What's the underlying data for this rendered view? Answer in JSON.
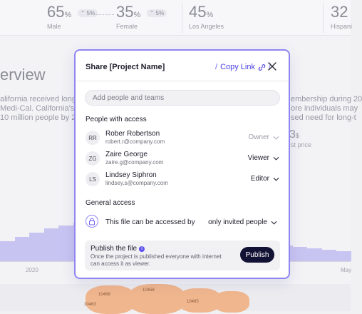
{
  "background": {
    "stats": [
      {
        "value": "65",
        "unit": "%",
        "chip": "5%",
        "label": "Male"
      },
      {
        "value": "35",
        "unit": "%",
        "chip": "5%",
        "label": "Female"
      },
      {
        "value": "45",
        "unit": "%",
        "label": "Los Angeles"
      },
      {
        "value": "32",
        "label": "Hispani"
      }
    ],
    "heading": "erview",
    "paragraph_left": [
      "alifornia received long",
      "Medi-Cal. California's c",
      "10 million people by 2"
    ],
    "paragraph_right": [
      "embership during 20",
      "ore individuals may",
      "sed need for long-t"
    ],
    "price_value": "3",
    "price_unit": "$",
    "price_label": "st price",
    "axis_labels": [
      "2020",
      "May"
    ],
    "map_labels": [
      "10468",
      "10458",
      "10463",
      "10465"
    ]
  },
  "modal": {
    "title": "Share [Project Name]",
    "copy_link_label": "Copy Link",
    "search_placeholder": "Add people and teams",
    "people_section": "People with access",
    "people": [
      {
        "initials": "RR",
        "name": "Rober Robertson",
        "email": "robert.r@company.com",
        "role": "Owner"
      },
      {
        "initials": "ZG",
        "name": "Zaire George",
        "email": "zaire.g@company.com",
        "role": "Viewer"
      },
      {
        "initials": "LS",
        "name": "Lindsey Siphron",
        "email": "lindsey.s@company.com",
        "role": "Editor"
      }
    ],
    "general_section": "General access",
    "general_text": "This file can be accessed by",
    "general_option": "only invited people",
    "publish_title": "Publish the file",
    "publish_desc": "Once the project is published everyone with internet can access it as viewer.",
    "publish_button": "Publish"
  },
  "colors": {
    "accent": "#4b3fe0",
    "modal_border": "#8f86f2",
    "publish_button": "#121235",
    "chart_bars": "#c8c4f2"
  }
}
